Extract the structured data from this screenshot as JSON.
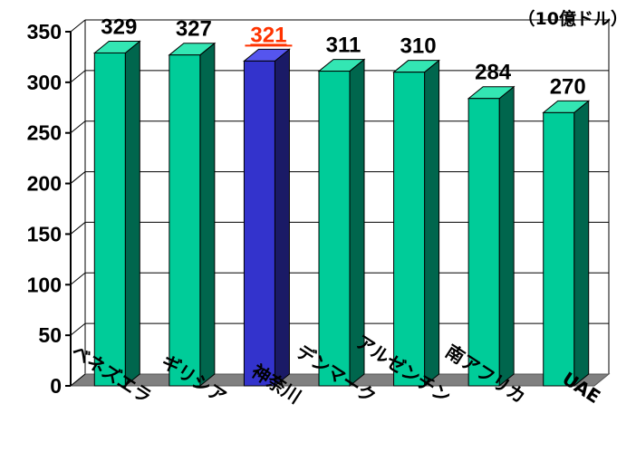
{
  "chart_data": {
    "type": "bar",
    "unit_label": "（10億ドル）",
    "categories": [
      "ベネズエラ",
      "ギリシア",
      "神奈川",
      "デンマーク",
      "アルゼンチン",
      "南アフリカ",
      "UAE"
    ],
    "values": [
      329,
      327,
      321,
      311,
      310,
      284,
      270
    ],
    "data_labels": [
      "329",
      "327",
      "321",
      "311",
      "310",
      "284",
      "270"
    ],
    "highlight_index": 2,
    "ylim": [
      0,
      350
    ],
    "yticks": [
      0,
      50,
      100,
      150,
      200,
      250,
      300,
      350
    ],
    "ytick_labels": [
      "0",
      "50",
      "100",
      "150",
      "200",
      "250",
      "300",
      "350"
    ],
    "grid": true,
    "legend": "none",
    "colors": {
      "bar_front": "#00cc99",
      "bar_side": "#00664d",
      "bar_top": "#33e6b3",
      "highlight_front": "#3333cc",
      "highlight_side": "#1a1a66",
      "highlight_top": "#5555ee",
      "highlight_label": "#ff3300",
      "floor": "#808080",
      "wall_grid": "#000000"
    }
  }
}
